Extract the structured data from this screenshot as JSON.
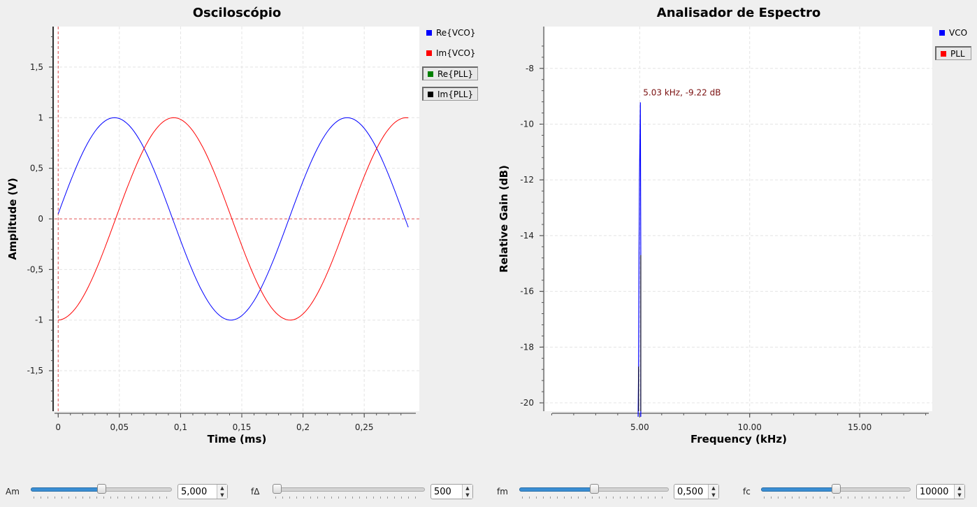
{
  "oscilloscope": {
    "title": "Osciloscópio",
    "xlabel": "Time (ms)",
    "ylabel": "Amplitude (V)",
    "xticks": [
      "0",
      "0,05",
      "0,1",
      "0,15",
      "0,2",
      "0,25"
    ],
    "yticks": [
      "1,5",
      "1",
      "0,5",
      "0",
      "-0,5",
      "-1",
      "-1,5"
    ],
    "legend": [
      {
        "label": "Re{VCO}",
        "color": "#0000ff"
      },
      {
        "label": "Im{VCO}",
        "color": "#ff0000"
      },
      {
        "label": "Re{PLL}",
        "color": "#008000"
      },
      {
        "label": "Im{PLL}",
        "color": "#000000"
      }
    ]
  },
  "spectrum": {
    "title": "Analisador de Espectro",
    "xlabel": "Frequency (kHz)",
    "ylabel": "Relative Gain (dB)",
    "xticks": [
      "5.00",
      "10.00",
      "15.00"
    ],
    "yticks": [
      "-8",
      "-10",
      "-12",
      "-14",
      "-16",
      "-18",
      "-20"
    ],
    "marker": "5.03 kHz, -9.22 dB",
    "legend": [
      {
        "label": "VCO",
        "color": "#0000ff"
      },
      {
        "label": "PLL",
        "color": "#ff0000"
      }
    ]
  },
  "controls": [
    {
      "label": "Am",
      "value": "5,000",
      "level": 0.5
    },
    {
      "label": "fΔ",
      "value": "500",
      "level": 0.0
    },
    {
      "label": "fm",
      "value": "0,500",
      "level": 0.5
    },
    {
      "label": "fc",
      "value": "10000",
      "level": 0.5
    }
  ],
  "chart_data": [
    {
      "type": "line",
      "title": "Osciloscópio",
      "xlabel": "Time (ms)",
      "ylabel": "Amplitude (V)",
      "xlim": [
        -0.003,
        0.295
      ],
      "ylim": [
        -1.9,
        1.9
      ],
      "series": [
        {
          "name": "Re{VCO}",
          "color": "#0000ff",
          "x": [
            0,
            0.02,
            0.045,
            0.07,
            0.093,
            0.117,
            0.14,
            0.164,
            0.187,
            0.211,
            0.235,
            0.26,
            0.288
          ],
          "y": [
            0.05,
            0.67,
            1.0,
            0.71,
            0.0,
            -0.71,
            -1.0,
            -0.71,
            0.0,
            0.71,
            1.0,
            0.68,
            -0.15
          ]
        },
        {
          "name": "Im{VCO}",
          "color": "#ff0000",
          "x": [
            0,
            0.02,
            0.045,
            0.07,
            0.093,
            0.117,
            0.14,
            0.164,
            0.187,
            0.211,
            0.235,
            0.26,
            0.288
          ],
          "y": [
            -1.0,
            -0.75,
            0.0,
            0.71,
            1.0,
            0.71,
            0.0,
            -0.71,
            -1.0,
            -0.71,
            0.0,
            0.7,
            0.99
          ]
        }
      ]
    },
    {
      "type": "line",
      "title": "Analisador de Espectro",
      "xlabel": "Frequency (kHz)",
      "ylabel": "Relative Gain (dB)",
      "xlim": [
        0.7,
        18.3
      ],
      "ylim": [
        -20.3,
        -6.5
      ],
      "series": [
        {
          "name": "VCO",
          "color": "#0000ff",
          "x": [
            4.93,
            4.95,
            4.97,
            4.99,
            5.01,
            5.03,
            5.05
          ],
          "y": [
            -20.5,
            -18.7,
            -14.6,
            -12.0,
            -10.5,
            -9.22,
            -14.7
          ]
        }
      ],
      "annotations": [
        {
          "x": 5.03,
          "y": -9.22,
          "text": "5.03 kHz, -9.22 dB"
        }
      ]
    }
  ]
}
